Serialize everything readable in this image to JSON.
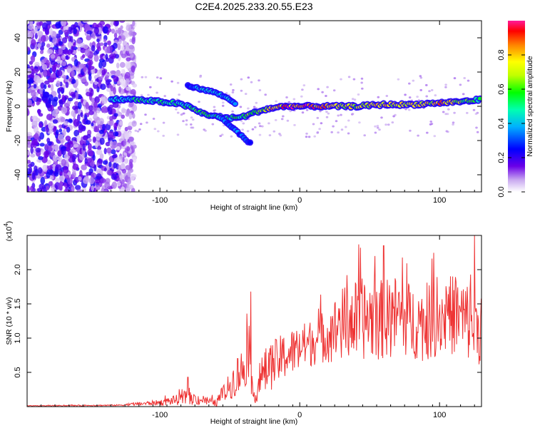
{
  "title": "C2E4.2025.233.20.55.E23",
  "top_panel": {
    "ylabel": "Frequency (Hz)",
    "xlabel": "Height of straight line (km)",
    "colorbar_label": "Normalized spectral amplitude",
    "colorbar_ticks": [
      "0.0",
      "0.2",
      "0.4",
      "0.6",
      "0.8"
    ]
  },
  "bottom_panel": {
    "ylabel": "SNR (10 * v/v)",
    "xlabel": "Height of straight line (km)",
    "multiplier": "(x10",
    "multiplier_exp": "4",
    "multiplier_close": ")"
  },
  "chart_data": [
    {
      "type": "heatmap",
      "title": "C2E4.2025.233.20.55.E23",
      "xlabel": "Height of straight line (km)",
      "ylabel": "Frequency (Hz)",
      "xlim": [
        -195,
        130
      ],
      "ylim": [
        -50,
        50
      ],
      "xticks": [
        -100,
        0,
        100
      ],
      "yticks": [
        -40,
        -20,
        0,
        20,
        40
      ],
      "colorbar": {
        "label": "Normalized spectral amplitude",
        "range": [
          0,
          1
        ],
        "ticks": [
          0.0,
          0.2,
          0.4,
          0.6,
          0.8
        ]
      },
      "noise_region": {
        "x": [
          -195,
          -118
        ],
        "amplitude": 0.2
      },
      "main_trace": {
        "x": [
          -135,
          -120,
          -105,
          -90,
          -80,
          -70,
          -60,
          -50,
          -40,
          -30,
          -20,
          -10,
          0,
          20,
          40,
          60,
          80,
          100,
          120,
          130
        ],
        "y": [
          4,
          4,
          3,
          2,
          0,
          -4,
          -6,
          -7,
          -6,
          -3,
          -1,
          0,
          0,
          0,
          0,
          1,
          1,
          2,
          3,
          4
        ],
        "amplitude": [
          0.4,
          0.5,
          0.5,
          0.5,
          0.5,
          0.6,
          0.5,
          0.5,
          0.6,
          0.6,
          0.8,
          0.9,
          0.9,
          0.8,
          0.7,
          0.8,
          0.7,
          0.8,
          0.6,
          0.5
        ]
      },
      "upper_branch": {
        "x": [
          -80,
          -70,
          -60,
          -55,
          -50,
          -45
        ],
        "y": [
          12,
          10,
          8,
          6,
          4,
          1
        ],
        "amplitude": [
          0.3,
          0.4,
          0.4,
          0.4,
          0.4,
          0.4
        ]
      },
      "lower_branch": {
        "x": [
          -58,
          -52,
          -46,
          -42,
          -38,
          -35
        ],
        "y": [
          -6,
          -10,
          -14,
          -17,
          -20,
          -22
        ],
        "amplitude": [
          0.4,
          0.35,
          0.35,
          0.3,
          0.3,
          0.25
        ]
      }
    },
    {
      "type": "line",
      "xlabel": "Height of straight line (km)",
      "ylabel": "SNR (10 * v/v)",
      "y_multiplier": "x10^4",
      "xlim": [
        -195,
        130
      ],
      "ylim": [
        0,
        2.5
      ],
      "xticks": [
        -100,
        0,
        100
      ],
      "yticks": [
        0.5,
        1.0,
        1.5,
        2.0
      ],
      "series": [
        {
          "name": "SNR",
          "color": "#ee3333",
          "envelope_x": [
            -195,
            -130,
            -100,
            -80,
            -70,
            -60,
            -50,
            -45,
            -40,
            -36,
            -34,
            -32,
            -28,
            -25,
            -20,
            -10,
            0,
            10,
            20,
            25,
            30,
            40,
            50,
            60,
            70,
            80,
            90,
            100,
            110,
            120,
            128
          ],
          "envelope_mean": [
            0.01,
            0.02,
            0.06,
            0.12,
            0.1,
            0.05,
            0.3,
            0.45,
            0.55,
            0.9,
            0.2,
            0.15,
            0.4,
            0.5,
            0.6,
            0.75,
            0.85,
            0.95,
            1.05,
            1.1,
            1.2,
            1.25,
            1.3,
            1.25,
            1.35,
            1.25,
            1.2,
            1.3,
            1.35,
            1.25,
            1.2
          ],
          "envelope_spread": [
            0.005,
            0.01,
            0.04,
            0.1,
            0.08,
            0.05,
            0.2,
            0.3,
            0.35,
            0.45,
            0.15,
            0.1,
            0.3,
            0.35,
            0.35,
            0.35,
            0.35,
            0.35,
            0.4,
            0.5,
            0.55,
            0.6,
            0.6,
            0.6,
            0.6,
            0.55,
            0.55,
            0.55,
            0.6,
            0.6,
            0.6
          ],
          "peaks": [
            {
              "x": -35,
              "y": 1.68
            },
            {
              "x": -80,
              "y": 0.43
            },
            {
              "x": 125,
              "y": 2.5
            },
            {
              "x": 60,
              "y": 2.35
            }
          ]
        }
      ]
    }
  ]
}
